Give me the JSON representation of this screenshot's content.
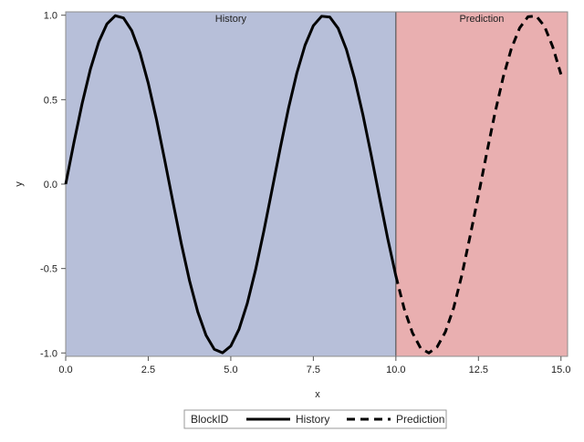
{
  "chart_data": {
    "type": "line",
    "xlabel": "x",
    "ylabel": "y",
    "xlim": [
      0,
      15.2
    ],
    "ylim": [
      -1.02,
      1.02
    ],
    "x_ticks": [
      0,
      2.5,
      5,
      7.5,
      10,
      12.5,
      15
    ],
    "x_tick_labels": [
      "0.0",
      "2.5",
      "5.0",
      "7.5",
      "10.0",
      "12.5",
      "15.0"
    ],
    "y_ticks": [
      -1,
      -0.5,
      0,
      0.5,
      1
    ],
    "y_tick_labels": [
      "-1.0",
      "-0.5",
      "0.0",
      "0.5",
      "1.0"
    ],
    "blocks": [
      {
        "label": "History",
        "x_start": 0,
        "x_end": 10,
        "color": "#b7bfd9"
      },
      {
        "label": "Prediction",
        "x_start": 10,
        "x_end": 15.2,
        "color": "#e9afb0"
      }
    ],
    "series": [
      {
        "name": "History",
        "style": "solid",
        "color": "#000000",
        "x": [
          0,
          0.25,
          0.5,
          0.75,
          1,
          1.25,
          1.5,
          1.75,
          2,
          2.25,
          2.5,
          2.75,
          3,
          3.25,
          3.5,
          3.75,
          4,
          4.25,
          4.5,
          4.75,
          5,
          5.25,
          5.5,
          5.75,
          6,
          6.25,
          6.5,
          6.75,
          7,
          7.25,
          7.5,
          7.75,
          8,
          8.25,
          8.5,
          8.75,
          9,
          9.25,
          9.5,
          9.75,
          10
        ],
        "y": [
          0,
          0.247,
          0.479,
          0.682,
          0.841,
          0.949,
          0.997,
          0.984,
          0.909,
          0.778,
          0.598,
          0.382,
          0.141,
          -0.108,
          -0.351,
          -0.572,
          -0.757,
          -0.895,
          -0.978,
          -0.999,
          -0.959,
          -0.859,
          -0.706,
          -0.508,
          -0.279,
          -0.033,
          0.215,
          0.451,
          0.657,
          0.823,
          0.938,
          0.994,
          0.989,
          0.923,
          0.798,
          0.624,
          0.412,
          0.174,
          -0.075,
          -0.32,
          -0.544
        ]
      },
      {
        "name": "Prediction",
        "style": "dashed",
        "color": "#000000",
        "x": [
          10,
          10.25,
          10.5,
          10.75,
          11,
          11.25,
          11.5,
          11.75,
          12,
          12.25,
          12.5,
          12.75,
          13,
          13.25,
          13.5,
          13.75,
          14,
          14.25,
          14.5,
          14.75,
          15
        ],
        "y": [
          -0.544,
          -0.737,
          -0.88,
          -0.972,
          -1.0,
          -0.964,
          -0.875,
          -0.733,
          -0.537,
          -0.306,
          -0.066,
          0.182,
          0.42,
          0.633,
          0.804,
          0.925,
          0.991,
          0.996,
          0.935,
          0.813,
          0.65
        ]
      }
    ],
    "legend": {
      "title": "BlockID",
      "placement": "bottom",
      "entries": [
        {
          "label": "History",
          "style": "solid"
        },
        {
          "label": "Prediction",
          "style": "dashed"
        }
      ]
    },
    "grid": false
  }
}
